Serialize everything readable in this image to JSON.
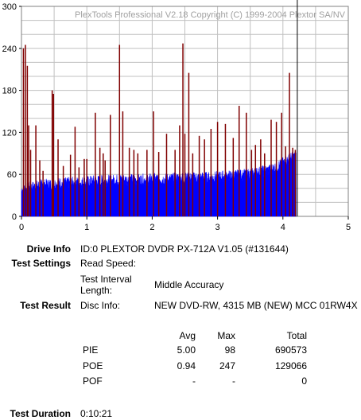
{
  "chart_data": {
    "type": "bar",
    "title": "PlexTools Professional V2.18 Copyright (C) 1999-2004 Plextor SA/NV",
    "xlim": [
      0,
      5
    ],
    "ylim": [
      0,
      300
    ],
    "x_ticks": [
      "0",
      "1",
      "2",
      "3",
      "4",
      "5"
    ],
    "y_ticks": [
      "0",
      "60",
      "120",
      "180",
      "240",
      "300"
    ],
    "grid": true,
    "colors": {
      "pie": "#0000ff",
      "poe": "#800000",
      "cursor": "#000000",
      "grid": "#c0c0c0"
    },
    "cursor_x": 4.22,
    "series": [
      {
        "name": "PIE",
        "type": "area",
        "x": [
          0,
          0.1,
          0.2,
          0.3,
          0.4,
          0.5,
          0.6,
          0.7,
          0.8,
          0.9,
          1.0,
          1.1,
          1.2,
          1.3,
          1.4,
          1.5,
          1.6,
          1.7,
          1.8,
          1.9,
          2.0,
          2.1,
          2.2,
          2.3,
          2.4,
          2.5,
          2.6,
          2.7,
          2.8,
          2.9,
          3.0,
          3.1,
          3.2,
          3.3,
          3.4,
          3.5,
          3.6,
          3.7,
          3.8,
          3.9,
          4.0,
          4.1,
          4.2
        ],
        "values": [
          38,
          40,
          42,
          44,
          45,
          46,
          47,
          47,
          48,
          48,
          49,
          50,
          50,
          51,
          51,
          52,
          52,
          52,
          52,
          52,
          53,
          53,
          53,
          53,
          54,
          54,
          54,
          55,
          55,
          55,
          56,
          57,
          57,
          58,
          59,
          60,
          62,
          64,
          66,
          70,
          76,
          82,
          86
        ]
      },
      {
        "name": "POE",
        "type": "spikes",
        "x": [
          0.03,
          0.06,
          0.09,
          0.11,
          0.14,
          0.22,
          0.28,
          0.33,
          0.47,
          0.49,
          0.56,
          0.64,
          0.75,
          0.82,
          0.88,
          0.96,
          1.0,
          1.13,
          1.2,
          1.25,
          1.28,
          1.36,
          1.5,
          1.55,
          1.65,
          1.72,
          1.78,
          1.92,
          2.02,
          2.1,
          2.22,
          2.35,
          2.42,
          2.47,
          2.5,
          2.56,
          2.62,
          2.72,
          2.8,
          2.9,
          3.0,
          3.12,
          3.24,
          3.33,
          3.44,
          3.52,
          3.58,
          3.66,
          3.72,
          3.82,
          3.9,
          3.98,
          4.04,
          4.1,
          4.15,
          4.19
        ],
        "values": [
          240,
          245,
          215,
          130,
          95,
          130,
          80,
          65,
          180,
          175,
          110,
          72,
          88,
          128,
          70,
          82,
          82,
          148,
          98,
          90,
          80,
          145,
          245,
          150,
          98,
          95,
          90,
          95,
          150,
          92,
          118,
          95,
          130,
          247,
          118,
          205,
          90,
          115,
          110,
          125,
          135,
          132,
          112,
          158,
          148,
          95,
          102,
          110,
          90,
          138,
          135,
          148,
          100,
          205,
          98,
          95
        ]
      }
    ]
  },
  "info": {
    "drive_info_label": "Drive Info",
    "drive_info_value": "ID:0 PLEXTOR DVDR PX-712A V1.05 (#131644)",
    "test_settings_label": "Test Settings",
    "read_speed_label": "Read Speed:",
    "interval_label_1": "Test Interval",
    "interval_label_2": "Length:",
    "interval_value": "Middle Accuracy",
    "test_result_label": "Test Result",
    "disc_info_label": "Disc Info:",
    "disc_info_value": "NEW DVD-RW, 4315 MB (NEW) MCC 01RW4X",
    "col_avg": "Avg",
    "col_max": "Max",
    "col_total": "Total",
    "rows": [
      {
        "name": "PIE",
        "avg": "5.00",
        "max": "98",
        "total": "690573"
      },
      {
        "name": "POE",
        "avg": "0.94",
        "max": "247",
        "total": "129066"
      },
      {
        "name": "POF",
        "avg": "-",
        "max": "-",
        "total": "0"
      }
    ],
    "duration_label": "Test Duration",
    "duration_value": "0:10:21"
  }
}
